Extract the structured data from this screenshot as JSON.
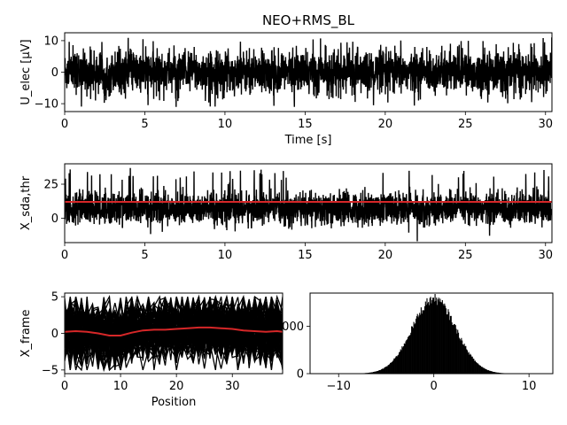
{
  "title": "NEO+RMS_BL",
  "chart_data": [
    {
      "id": "signal",
      "type": "line",
      "title": "NEO+RMS_BL",
      "xlabel": "Time [s]",
      "ylabel": "U_elec [µV]",
      "xlim": [
        0,
        30.4
      ],
      "ylim": [
        -12.5,
        12.5
      ],
      "xticks": [
        0,
        5,
        10,
        15,
        20,
        25,
        30
      ],
      "yticks": [
        -10,
        0,
        10
      ],
      "series": [
        {
          "color": "#000000",
          "description_stats": {
            "typical_range": [
              -8,
              8
            ],
            "max": 11,
            "min": -11
          }
        }
      ]
    },
    {
      "id": "sda",
      "type": "line",
      "xlabel": "",
      "ylabel": "X_sda,thr",
      "xlim": [
        0,
        30.4
      ],
      "ylim": [
        -18,
        40
      ],
      "xticks": [
        0,
        5,
        10,
        15,
        20,
        25,
        30
      ],
      "yticks": [
        0,
        25
      ],
      "series": [
        {
          "color": "#000000",
          "stats": {
            "typical_range": [
              -10,
              25
            ],
            "max": 37,
            "min": -17
          }
        },
        {
          "color": "#d62728",
          "constant_value": 12
        }
      ]
    },
    {
      "id": "frames",
      "type": "line",
      "xlabel": "Position",
      "ylabel": "X_frame",
      "xlim": [
        0,
        39
      ],
      "ylim": [
        -5.5,
        5.5
      ],
      "xticks": [
        0,
        10,
        20,
        30
      ],
      "yticks": [
        -5,
        0,
        5
      ],
      "series": [
        {
          "color": "#000000",
          "stats": {
            "range": [
              -5,
              5
            ]
          }
        },
        {
          "color": "#d62728",
          "x": [
            0,
            2,
            4,
            6,
            8,
            10,
            12,
            14,
            16,
            18,
            20,
            22,
            24,
            26,
            28,
            30,
            32,
            34,
            36,
            38,
            39
          ],
          "values": [
            0.2,
            0.3,
            0.2,
            0.0,
            -0.3,
            -0.3,
            0.1,
            0.4,
            0.5,
            0.5,
            0.6,
            0.7,
            0.8,
            0.8,
            0.7,
            0.6,
            0.4,
            0.3,
            0.2,
            0.3,
            0.2
          ]
        }
      ]
    },
    {
      "id": "histogram",
      "type": "bar",
      "xlabel": "",
      "ylabel": "",
      "xlim": [
        -13,
        12.5
      ],
      "ylim": [
        0,
        3400
      ],
      "xticks": [
        -10,
        0,
        10
      ],
      "yticks": [
        0,
        2000
      ],
      "distribution": {
        "shape": "gaussian",
        "mean": 0,
        "std": 2.3,
        "peak": 3150,
        "range": [
          -10,
          10
        ]
      }
    }
  ]
}
